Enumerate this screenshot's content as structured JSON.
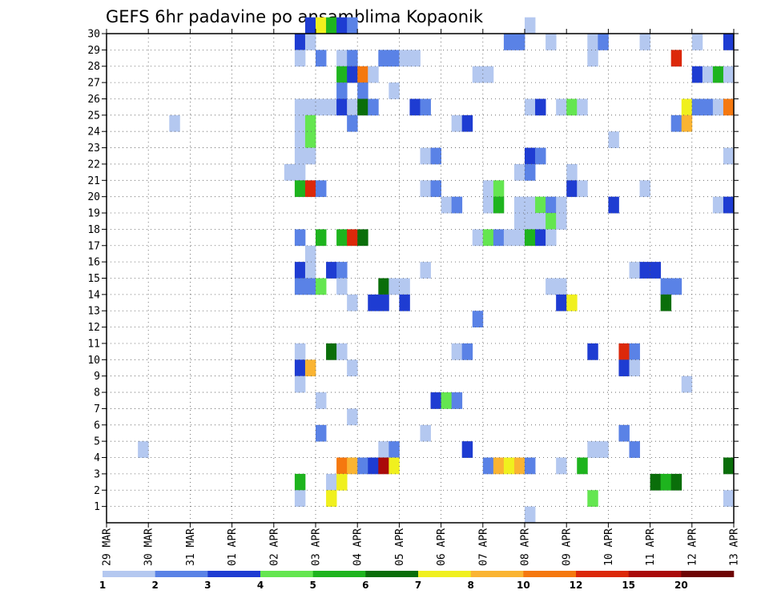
{
  "chart_data": {
    "type": "heatmap",
    "title": "GEFS 6hr padavine po ansamblima Kopaonik",
    "xlabel": "",
    "ylabel": "",
    "x_ticks": [
      "29 MAR",
      "30 MAR",
      "31 MAR",
      "01 APR",
      "02 APR",
      "03 APR",
      "04 APR",
      "05 APR",
      "06 APR",
      "07 APR",
      "08 APR",
      "09 APR",
      "10 APR",
      "11 APR",
      "12 APR",
      "13 APR"
    ],
    "x_unit": "6-hour steps",
    "xlim": [
      0,
      60
    ],
    "y_ticks": [
      1,
      2,
      3,
      4,
      5,
      6,
      7,
      8,
      9,
      10,
      11,
      12,
      13,
      14,
      15,
      16,
      17,
      18,
      19,
      20,
      21,
      22,
      23,
      24,
      25,
      26,
      27,
      28,
      29,
      30
    ],
    "ylim": [
      0,
      30
    ],
    "colorbar": {
      "labels": [
        "1",
        "2",
        "3",
        "4",
        "5",
        "6",
        "7",
        "8",
        "10",
        "12",
        "15",
        "20"
      ],
      "colors": [
        "#b4c8f0",
        "#5a82e6",
        "#1e3cd2",
        "#64e650",
        "#1eb41e",
        "#0a6e0a",
        "#f0f01e",
        "#fab432",
        "#f5780f",
        "#dc280a",
        "#aa0a0a",
        "#6e0505"
      ]
    },
    "cells": [
      [
        19,
        30,
        2
      ],
      [
        20,
        30,
        6
      ],
      [
        21,
        30,
        4
      ],
      [
        22,
        30,
        2
      ],
      [
        23,
        30,
        1
      ],
      [
        40,
        30,
        0
      ],
      [
        18,
        29,
        2
      ],
      [
        19,
        29,
        0
      ],
      [
        38,
        29,
        1
      ],
      [
        39,
        29,
        1
      ],
      [
        42,
        29,
        0
      ],
      [
        46,
        29,
        0
      ],
      [
        47,
        29,
        1
      ],
      [
        51,
        29,
        0
      ],
      [
        56,
        29,
        0
      ],
      [
        59,
        29,
        2
      ],
      [
        18,
        28,
        0
      ],
      [
        20,
        28,
        1
      ],
      [
        22,
        28,
        0
      ],
      [
        23,
        28,
        1
      ],
      [
        26,
        28,
        1
      ],
      [
        27,
        28,
        1
      ],
      [
        28,
        28,
        0
      ],
      [
        29,
        28,
        0
      ],
      [
        46,
        28,
        0
      ],
      [
        54,
        28,
        9
      ],
      [
        22,
        27,
        4
      ],
      [
        23,
        27,
        2
      ],
      [
        24,
        27,
        8
      ],
      [
        25,
        27,
        0
      ],
      [
        35,
        27,
        0
      ],
      [
        36,
        27,
        0
      ],
      [
        56,
        27,
        2
      ],
      [
        57,
        27,
        0
      ],
      [
        58,
        27,
        4
      ],
      [
        59,
        27,
        0
      ],
      [
        22,
        26,
        1
      ],
      [
        24,
        26,
        1
      ],
      [
        27,
        26,
        0
      ],
      [
        18,
        25,
        0
      ],
      [
        19,
        25,
        0
      ],
      [
        20,
        25,
        0
      ],
      [
        21,
        25,
        0
      ],
      [
        22,
        25,
        2
      ],
      [
        23,
        25,
        0
      ],
      [
        24,
        25,
        5
      ],
      [
        25,
        25,
        1
      ],
      [
        29,
        25,
        2
      ],
      [
        30,
        25,
        1
      ],
      [
        40,
        25,
        0
      ],
      [
        41,
        25,
        2
      ],
      [
        43,
        25,
        0
      ],
      [
        44,
        25,
        3
      ],
      [
        45,
        25,
        0
      ],
      [
        55,
        25,
        6
      ],
      [
        56,
        25,
        1
      ],
      [
        57,
        25,
        1
      ],
      [
        58,
        25,
        0
      ],
      [
        59,
        25,
        8
      ],
      [
        6,
        24,
        0
      ],
      [
        18,
        24,
        0
      ],
      [
        19,
        24,
        3
      ],
      [
        23,
        24,
        1
      ],
      [
        33,
        24,
        0
      ],
      [
        34,
        24,
        2
      ],
      [
        54,
        24,
        1
      ],
      [
        55,
        24,
        7
      ],
      [
        18,
        23,
        0
      ],
      [
        19,
        23,
        3
      ],
      [
        48,
        23,
        0
      ],
      [
        18,
        22,
        0
      ],
      [
        19,
        22,
        0
      ],
      [
        30,
        22,
        0
      ],
      [
        31,
        22,
        1
      ],
      [
        40,
        22,
        2
      ],
      [
        41,
        22,
        1
      ],
      [
        59,
        22,
        0
      ],
      [
        17,
        21,
        0
      ],
      [
        18,
        21,
        0
      ],
      [
        39,
        21,
        0
      ],
      [
        40,
        21,
        1
      ],
      [
        44,
        21,
        0
      ],
      [
        18,
        20,
        4
      ],
      [
        19,
        20,
        9
      ],
      [
        20,
        20,
        1
      ],
      [
        30,
        20,
        0
      ],
      [
        31,
        20,
        1
      ],
      [
        36,
        20,
        0
      ],
      [
        37,
        20,
        3
      ],
      [
        44,
        20,
        2
      ],
      [
        45,
        20,
        0
      ],
      [
        51,
        20,
        0
      ],
      [
        32,
        19,
        0
      ],
      [
        33,
        19,
        1
      ],
      [
        36,
        19,
        0
      ],
      [
        37,
        19,
        4
      ],
      [
        39,
        19,
        0
      ],
      [
        40,
        19,
        0
      ],
      [
        41,
        19,
        3
      ],
      [
        42,
        19,
        1
      ],
      [
        43,
        19,
        0
      ],
      [
        48,
        19,
        2
      ],
      [
        58,
        19,
        0
      ],
      [
        59,
        19,
        2
      ],
      [
        39,
        18,
        0
      ],
      [
        40,
        18,
        0
      ],
      [
        41,
        18,
        0
      ],
      [
        42,
        18,
        3
      ],
      [
        43,
        18,
        0
      ],
      [
        18,
        17,
        1
      ],
      [
        20,
        17,
        4
      ],
      [
        22,
        17,
        4
      ],
      [
        23,
        17,
        9
      ],
      [
        24,
        17,
        5
      ],
      [
        35,
        17,
        0
      ],
      [
        36,
        17,
        3
      ],
      [
        37,
        17,
        1
      ],
      [
        38,
        17,
        0
      ],
      [
        39,
        17,
        0
      ],
      [
        40,
        17,
        4
      ],
      [
        41,
        17,
        2
      ],
      [
        42,
        17,
        0
      ],
      [
        19,
        16,
        0
      ],
      [
        18,
        15,
        2
      ],
      [
        19,
        15,
        0
      ],
      [
        21,
        15,
        2
      ],
      [
        22,
        15,
        1
      ],
      [
        30,
        15,
        0
      ],
      [
        50,
        15,
        0
      ],
      [
        51,
        15,
        2
      ],
      [
        52,
        15,
        2
      ],
      [
        18,
        14,
        1
      ],
      [
        19,
        14,
        1
      ],
      [
        20,
        14,
        3
      ],
      [
        22,
        14,
        0
      ],
      [
        26,
        14,
        5
      ],
      [
        27,
        14,
        0
      ],
      [
        28,
        14,
        0
      ],
      [
        42,
        14,
        0
      ],
      [
        43,
        14,
        0
      ],
      [
        53,
        14,
        1
      ],
      [
        54,
        14,
        1
      ],
      [
        23,
        13,
        0
      ],
      [
        25,
        13,
        2
      ],
      [
        26,
        13,
        2
      ],
      [
        28,
        13,
        2
      ],
      [
        43,
        13,
        2
      ],
      [
        44,
        13,
        6
      ],
      [
        53,
        13,
        5
      ],
      [
        35,
        12,
        1
      ],
      [
        18,
        10,
        0
      ],
      [
        21,
        10,
        5
      ],
      [
        22,
        10,
        0
      ],
      [
        33,
        10,
        0
      ],
      [
        34,
        10,
        1
      ],
      [
        46,
        10,
        2
      ],
      [
        49,
        10,
        9
      ],
      [
        50,
        10,
        1
      ],
      [
        18,
        9,
        2
      ],
      [
        19,
        9,
        7
      ],
      [
        23,
        9,
        0
      ],
      [
        49,
        9,
        2
      ],
      [
        50,
        9,
        0
      ],
      [
        18,
        8,
        0
      ],
      [
        55,
        8,
        0
      ],
      [
        20,
        7,
        0
      ],
      [
        31,
        7,
        2
      ],
      [
        32,
        7,
        3
      ],
      [
        33,
        7,
        1
      ],
      [
        23,
        6,
        0
      ],
      [
        20,
        5,
        1
      ],
      [
        30,
        5,
        0
      ],
      [
        49,
        5,
        1
      ],
      [
        3,
        4,
        0
      ],
      [
        26,
        4,
        0
      ],
      [
        27,
        4,
        1
      ],
      [
        34,
        4,
        2
      ],
      [
        46,
        4,
        0
      ],
      [
        47,
        4,
        0
      ],
      [
        50,
        4,
        1
      ],
      [
        22,
        3,
        8
      ],
      [
        23,
        3,
        7
      ],
      [
        24,
        3,
        1
      ],
      [
        25,
        3,
        2
      ],
      [
        26,
        3,
        10
      ],
      [
        27,
        3,
        6
      ],
      [
        36,
        3,
        1
      ],
      [
        37,
        3,
        7
      ],
      [
        38,
        3,
        6
      ],
      [
        39,
        3,
        7
      ],
      [
        40,
        3,
        1
      ],
      [
        43,
        3,
        0
      ],
      [
        45,
        3,
        4
      ],
      [
        59,
        3,
        5
      ],
      [
        18,
        2,
        4
      ],
      [
        21,
        2,
        0
      ],
      [
        22,
        2,
        6
      ],
      [
        52,
        2,
        5
      ],
      [
        53,
        2,
        4
      ],
      [
        54,
        2,
        5
      ],
      [
        18,
        1,
        0
      ],
      [
        21,
        1,
        6
      ],
      [
        46,
        1,
        3
      ],
      [
        59,
        1,
        0
      ],
      [
        40,
        0,
        0
      ]
    ]
  }
}
